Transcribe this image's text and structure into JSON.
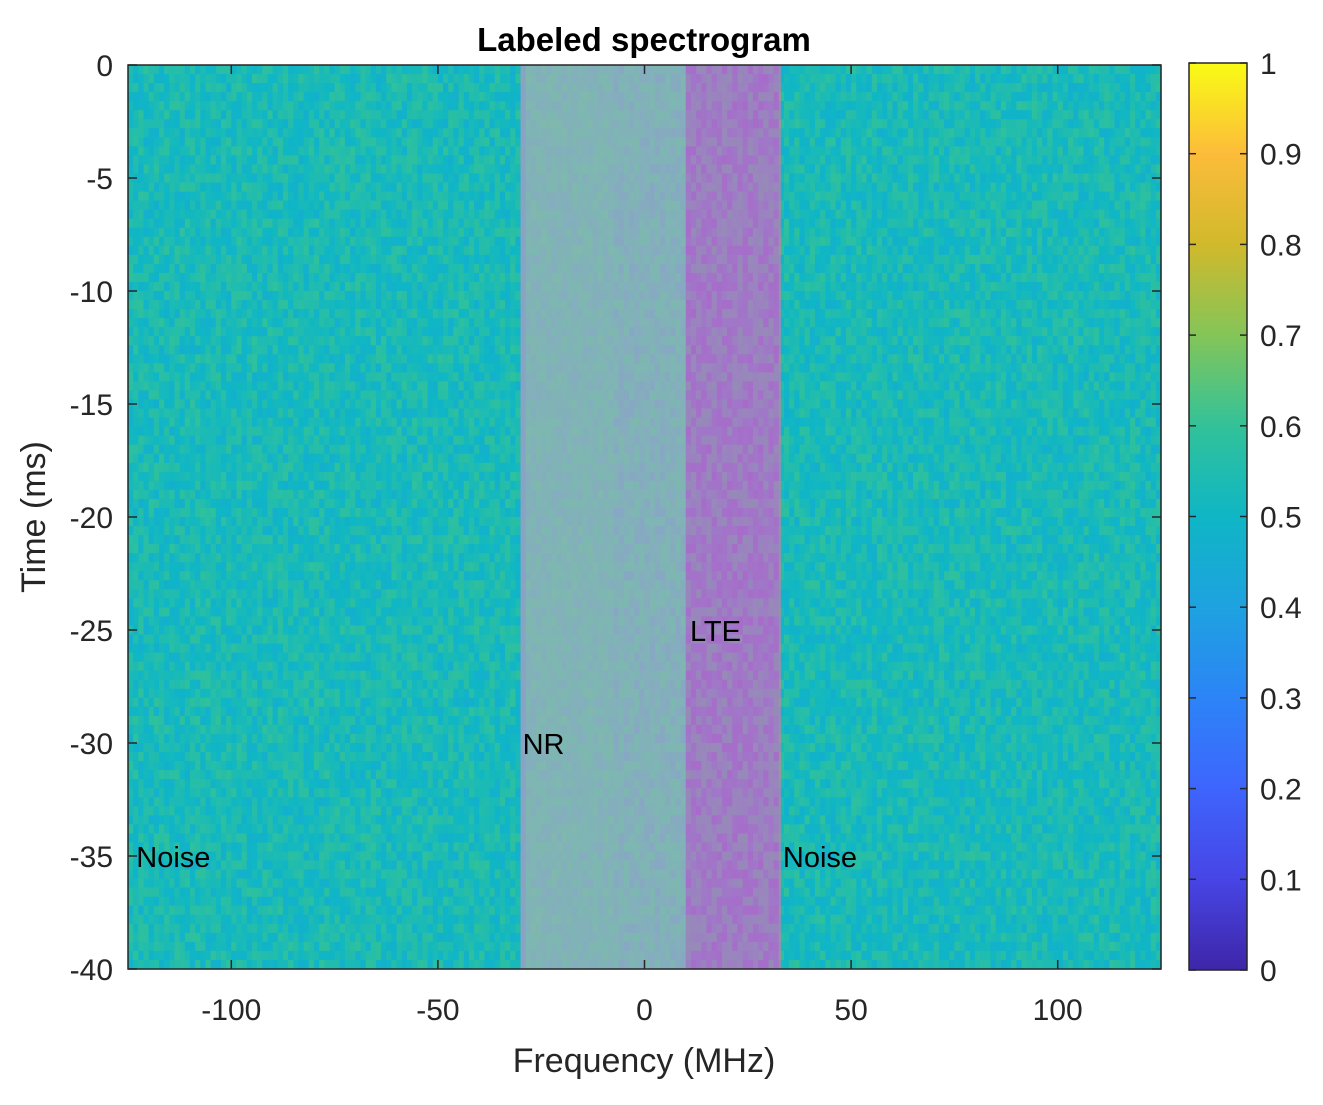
{
  "chart_data": {
    "type": "heatmap",
    "title": "Labeled spectrogram",
    "xlabel": "Frequency (MHz)",
    "ylabel": "Time (ms)",
    "xlim": [
      -125,
      125
    ],
    "ylim": [
      -40,
      0
    ],
    "x_ticks": [
      -100,
      -50,
      0,
      50,
      100
    ],
    "x_tick_labels": [
      "-100",
      "-50",
      "0",
      "50",
      "100"
    ],
    "y_ticks": [
      0,
      -5,
      -10,
      -15,
      -20,
      -25,
      -30,
      -35,
      -40
    ],
    "y_tick_labels": [
      "0",
      "-5",
      "-10",
      "-15",
      "-20",
      "-25",
      "-30",
      "-35",
      "-40"
    ],
    "colorbar": {
      "range": [
        0,
        1
      ],
      "ticks": [
        0,
        0.1,
        0.2,
        0.3,
        0.4,
        0.5,
        0.6,
        0.7,
        0.8,
        0.9,
        1
      ],
      "tick_labels": [
        "0",
        "0.1",
        "0.2",
        "0.3",
        "0.4",
        "0.5",
        "0.6",
        "0.7",
        "0.8",
        "0.9",
        "1"
      ],
      "colormap": "parula"
    },
    "regions": [
      {
        "label": "Noise",
        "x_range": [
          -125,
          -30
        ],
        "overlay_color": null
      },
      {
        "label": "NR",
        "x_range": [
          -30,
          10
        ],
        "overlay_color": "#d9b8a0"
      },
      {
        "label": "LTE",
        "x_range": [
          10,
          33
        ],
        "overlay_color": "#ff6fa0"
      },
      {
        "label": "Noise",
        "x_range": [
          33,
          125
        ],
        "overlay_color": null
      }
    ],
    "annotations": [
      {
        "text": "Noise",
        "x": -123,
        "y": -35
      },
      {
        "text": "NR",
        "x": -29.5,
        "y": -30
      },
      {
        "text": "LTE",
        "x": 11,
        "y": -25
      },
      {
        "text": "Noise",
        "x": 33.5,
        "y": -35
      }
    ],
    "noise_level": 0.53
  }
}
